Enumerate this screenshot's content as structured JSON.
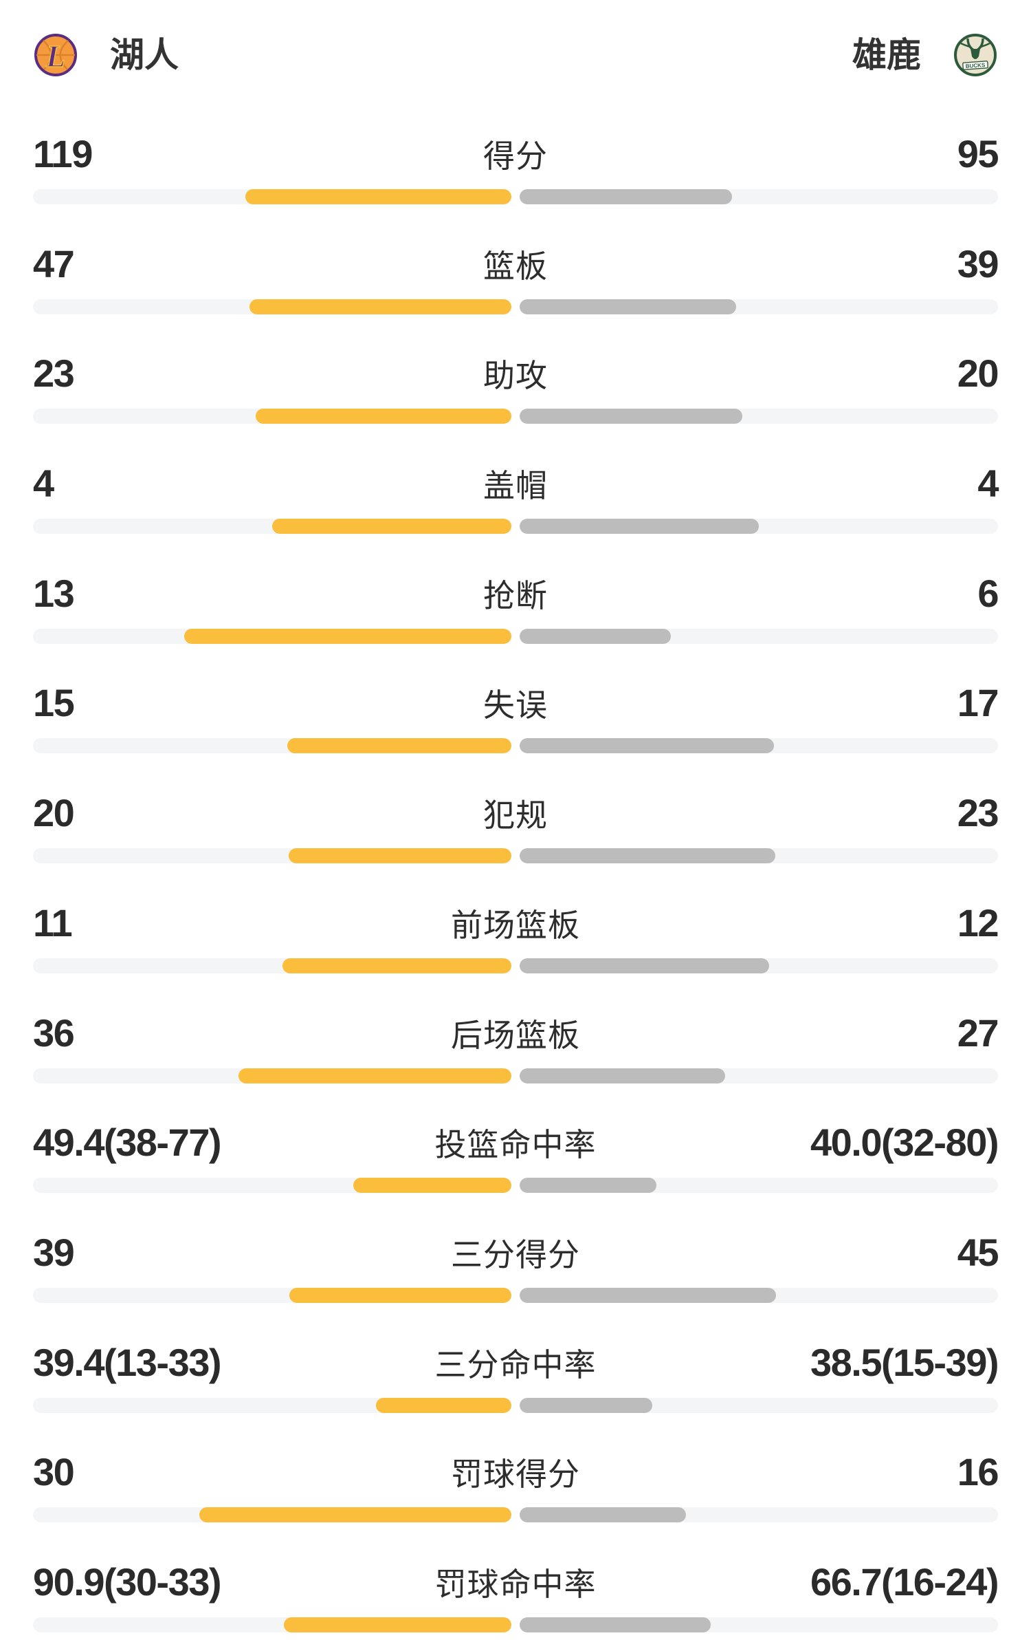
{
  "header": {
    "home": {
      "name": "湖人",
      "logo_text": "L"
    },
    "away": {
      "name": "雄鹿",
      "logo_text": "BUCKS"
    }
  },
  "colors": {
    "home_bar": "#FBBD3C",
    "away_bar": "#BCBCBC",
    "track": "#F4F5F7",
    "value_text": "#2B2B2B",
    "label_text": "#2D2D2D",
    "team_name_text": "#333333",
    "lakers_purple": "#5A2C82",
    "lakers_gold": "#F9C13E",
    "lakers_orange": "#F59B3E",
    "bucks_green": "#2B5B3A",
    "bucks_cream": "#EBE3CE"
  },
  "chart_data": {
    "type": "bar",
    "teams": {
      "home": "湖人",
      "away": "雄鹿"
    },
    "layout": "paired horizontal bars growing outward from center; left series yellow, right series gray",
    "rows": [
      {
        "label": "得分",
        "home": "119",
        "away": "95",
        "home_width_pct": 55.6,
        "away_width_pct": 44.4
      },
      {
        "label": "篮板",
        "home": "47",
        "away": "39",
        "home_width_pct": 54.7,
        "away_width_pct": 45.3
      },
      {
        "label": "助攻",
        "home": "23",
        "away": "20",
        "home_width_pct": 53.5,
        "away_width_pct": 46.5
      },
      {
        "label": "盖帽",
        "home": "4",
        "away": "4",
        "home_width_pct": 50.0,
        "away_width_pct": 50.0
      },
      {
        "label": "抢断",
        "home": "13",
        "away": "6",
        "home_width_pct": 68.4,
        "away_width_pct": 31.6
      },
      {
        "label": "失误",
        "home": "15",
        "away": "17",
        "home_width_pct": 46.9,
        "away_width_pct": 53.1
      },
      {
        "label": "犯规",
        "home": "20",
        "away": "23",
        "home_width_pct": 46.5,
        "away_width_pct": 53.5
      },
      {
        "label": "前场篮板",
        "home": "11",
        "away": "12",
        "home_width_pct": 47.8,
        "away_width_pct": 52.2
      },
      {
        "label": "后场篮板",
        "home": "36",
        "away": "27",
        "home_width_pct": 57.1,
        "away_width_pct": 42.9
      },
      {
        "label": "投篮命中率",
        "home": "49.4(38-77)",
        "away": "40.0(32-80)",
        "home_width_pct": 33.1,
        "away_width_pct": 28.6
      },
      {
        "label": "三分得分",
        "home": "39",
        "away": "45",
        "home_width_pct": 46.4,
        "away_width_pct": 53.6
      },
      {
        "label": "三分命中率",
        "home": "39.4(13-33)",
        "away": "38.5(15-39)",
        "home_width_pct": 28.3,
        "away_width_pct": 27.8
      },
      {
        "label": "罚球得分",
        "home": "30",
        "away": "16",
        "home_width_pct": 65.2,
        "away_width_pct": 34.8
      },
      {
        "label": "罚球命中率",
        "home": "90.9(30-33)",
        "away": "66.7(16-24)",
        "home_width_pct": 47.6,
        "away_width_pct": 40.0
      }
    ]
  }
}
